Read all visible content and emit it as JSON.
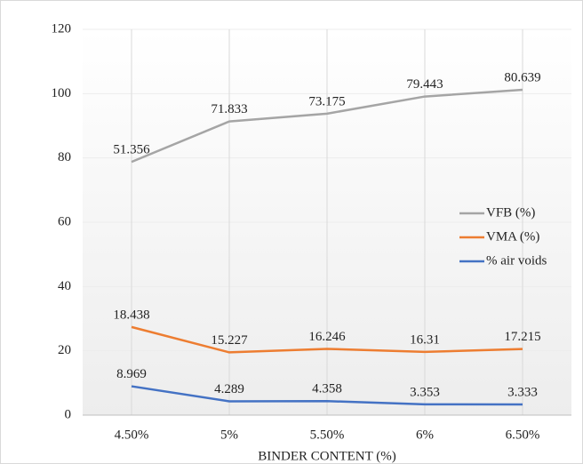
{
  "chart_data": {
    "type": "line",
    "stacked": true,
    "x_label": "BINDER CONTENT (%)",
    "categories": [
      "4.50%",
      "5%",
      "5.50%",
      "6%",
      "6.50%"
    ],
    "series": [
      {
        "name": "VFB (%)",
        "color": "#a5a5a5",
        "values": [
          51.356,
          71.833,
          73.175,
          79.443,
          80.639
        ]
      },
      {
        "name": "VMA (%)",
        "color": "#ed7d31",
        "values": [
          18.438,
          15.227,
          16.246,
          16.31,
          17.215
        ]
      },
      {
        "name": "% air voids",
        "color": "#4472c4",
        "values": [
          8.969,
          4.289,
          4.358,
          3.353,
          3.333
        ]
      }
    ],
    "ylim": [
      0,
      120
    ],
    "yticks": [
      0,
      20,
      40,
      60,
      80,
      100,
      120
    ],
    "grid": true,
    "legend": "right"
  }
}
